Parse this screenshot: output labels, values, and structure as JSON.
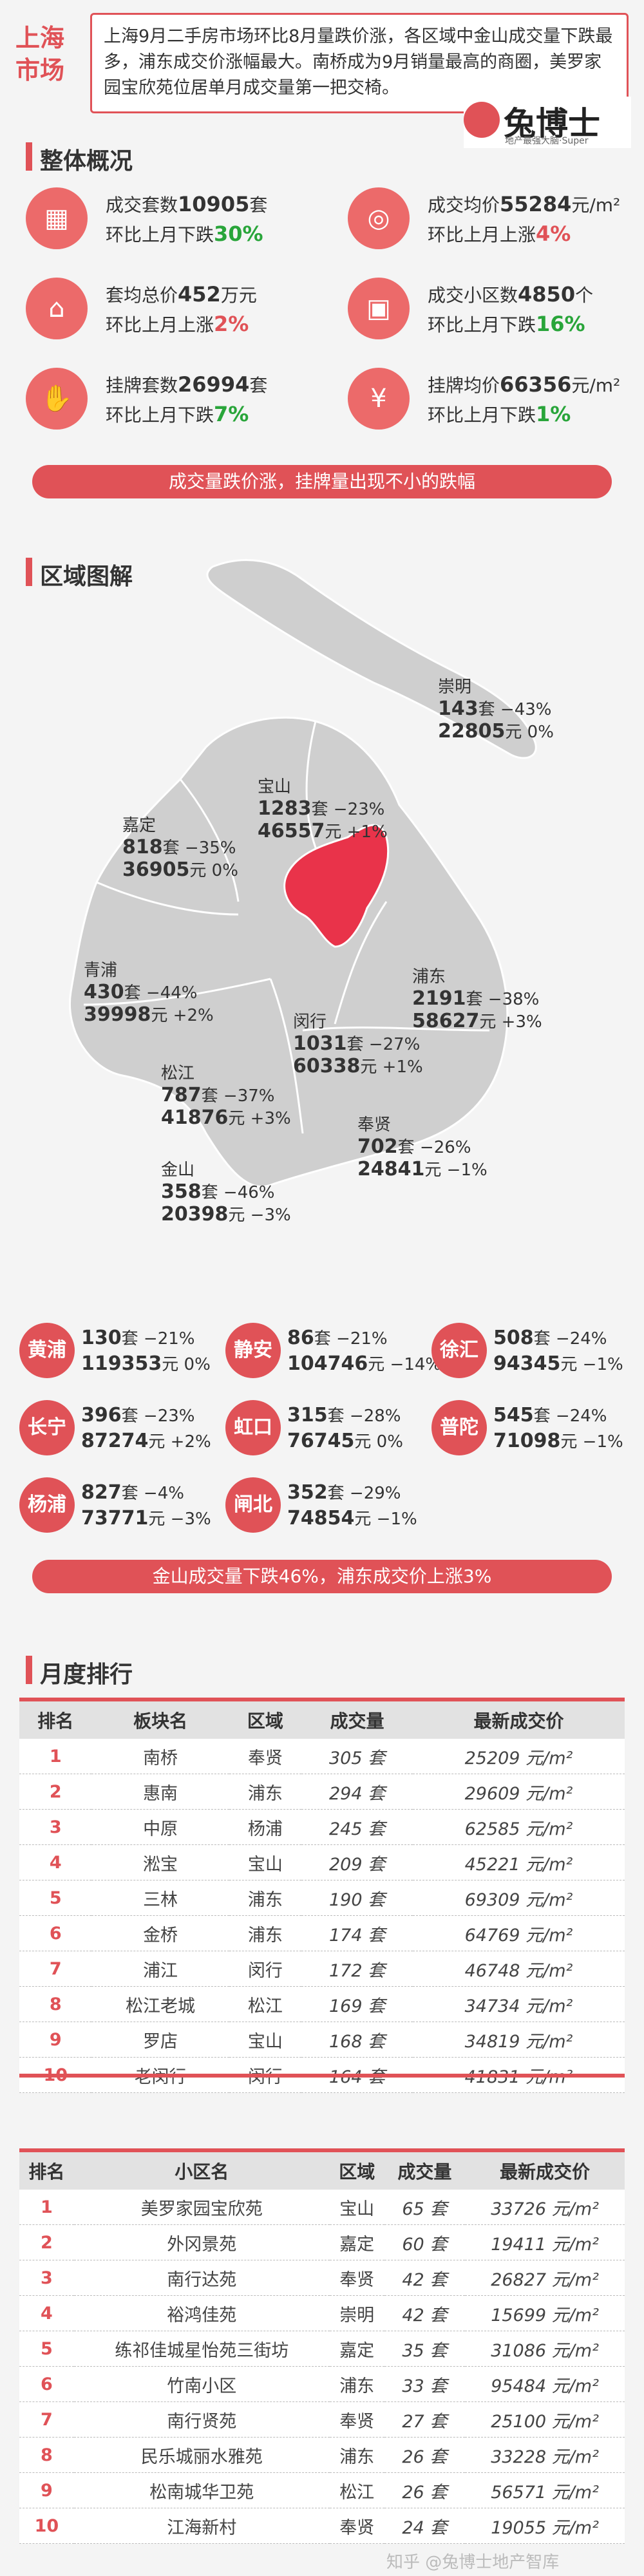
{
  "header": {
    "tag_line1": "上海",
    "tag_line2": "市场",
    "summary": "上海9月二手房市场环比8月量跌价涨，各区域中金山成交量下跌最多，浦东成交价涨幅最大。南桥成为9月销量最高的商圈，美罗家园宝欣苑位居单月成交量第一把交椅。",
    "logo_name": "兔博士",
    "logo_sub": "地产最强大脑·Super"
  },
  "overview": {
    "title": "整体概况",
    "items": [
      {
        "icon": "building-icon",
        "l1_pre": "成交套数",
        "value": "10905",
        "l1_post": "套",
        "l2_pre": "环比上月下跌",
        "change": "30%",
        "dir": "down"
      },
      {
        "icon": "coins-icon",
        "l1_pre": "成交均价",
        "value": "55284",
        "l1_post": "元/m²",
        "l2_pre": "环比上月上涨",
        "change": "4%",
        "dir": "up"
      },
      {
        "icon": "house-price-icon",
        "l1_pre": "套均总价",
        "value": "452",
        "l1_post": "万元",
        "l2_pre": "环比上月上涨",
        "change": "2%",
        "dir": "up"
      },
      {
        "icon": "area-icon",
        "l1_pre": "成交小区数",
        "value": "4850",
        "l1_post": "个",
        "l2_pre": "环比上月下跌",
        "change": "16%",
        "dir": "down"
      },
      {
        "icon": "hand-coin-icon",
        "l1_pre": "挂牌套数",
        "value": "26994",
        "l1_post": "套",
        "l2_pre": "环比上月下跌",
        "change": "7%",
        "dir": "down"
      },
      {
        "icon": "yen-icon",
        "l1_pre": "挂牌均价",
        "value": "66356",
        "l1_post": "元/m²",
        "l2_pre": "环比上月下跌",
        "change": "1%",
        "dir": "down"
      }
    ],
    "banner": "成交量跌价涨，挂牌量出现不小的跌幅"
  },
  "region": {
    "title": "区域图解",
    "map_districts": [
      {
        "key": "chongming",
        "name": "崇明",
        "units": "143",
        "units_chg": "−43%",
        "price": "22805",
        "price_chg": "0%"
      },
      {
        "key": "baoshan",
        "name": "宝山",
        "units": "1283",
        "units_chg": "−23%",
        "price": "46557",
        "price_chg": "+1%"
      },
      {
        "key": "jiading",
        "name": "嘉定",
        "units": "818",
        "units_chg": "−35%",
        "price": "36905",
        "price_chg": "0%"
      },
      {
        "key": "qingpu",
        "name": "青浦",
        "units": "430",
        "units_chg": "−44%",
        "price": "39998",
        "price_chg": "+2%"
      },
      {
        "key": "pudong",
        "name": "浦东",
        "units": "2191",
        "units_chg": "−38%",
        "price": "58627",
        "price_chg": "+3%"
      },
      {
        "key": "minhang",
        "name": "闵行",
        "units": "1031",
        "units_chg": "−27%",
        "price": "60338",
        "price_chg": "+1%"
      },
      {
        "key": "songjiang",
        "name": "松江",
        "units": "787",
        "units_chg": "−37%",
        "price": "41876",
        "price_chg": "+3%"
      },
      {
        "key": "fengxian",
        "name": "奉贤",
        "units": "702",
        "units_chg": "−26%",
        "price": "24841",
        "price_chg": "−1%"
      },
      {
        "key": "jinshan",
        "name": "金山",
        "units": "358",
        "units_chg": "−46%",
        "price": "20398",
        "price_chg": "−3%"
      }
    ],
    "units_suffix": "套",
    "price_suffix": "元",
    "center_districts": [
      {
        "name": "黄浦",
        "units": "130",
        "units_chg": "−21%",
        "price": "119353",
        "price_chg": "0%"
      },
      {
        "name": "静安",
        "units": "86",
        "units_chg": "−21%",
        "price": "104746",
        "price_chg": "−14%"
      },
      {
        "name": "徐汇",
        "units": "508",
        "units_chg": "−24%",
        "price": "94345",
        "price_chg": "−1%"
      },
      {
        "name": "长宁",
        "units": "396",
        "units_chg": "−23%",
        "price": "87274",
        "price_chg": "+2%"
      },
      {
        "name": "虹口",
        "units": "315",
        "units_chg": "−28%",
        "price": "76745",
        "price_chg": "0%"
      },
      {
        "name": "普陀",
        "units": "545",
        "units_chg": "−24%",
        "price": "71098",
        "price_chg": "−1%"
      },
      {
        "name": "杨浦",
        "units": "827",
        "units_chg": "−4%",
        "price": "73771",
        "price_chg": "−3%"
      },
      {
        "name": "闸北",
        "units": "352",
        "units_chg": "−29%",
        "price": "74854",
        "price_chg": "−1%"
      }
    ],
    "banner": "金山成交量下跌46%，浦东成交价上涨3%"
  },
  "ranking": {
    "title": "月度排行",
    "table1": {
      "headers": [
        "排名",
        "板块名",
        "区域",
        "成交量",
        "最新成交价"
      ],
      "unit_vol": "套",
      "unit_price": "元/m²",
      "rows": [
        [
          "1",
          "南桥",
          "奉贤",
          "305",
          "25209"
        ],
        [
          "2",
          "惠南",
          "浦东",
          "294",
          "29609"
        ],
        [
          "3",
          "中原",
          "杨浦",
          "245",
          "62585"
        ],
        [
          "4",
          "淞宝",
          "宝山",
          "209",
          "45221"
        ],
        [
          "5",
          "三林",
          "浦东",
          "190",
          "69309"
        ],
        [
          "6",
          "金桥",
          "浦东",
          "174",
          "64769"
        ],
        [
          "7",
          "浦江",
          "闵行",
          "172",
          "46748"
        ],
        [
          "8",
          "松江老城",
          "松江",
          "169",
          "34734"
        ],
        [
          "9",
          "罗店",
          "宝山",
          "168",
          "34819"
        ],
        [
          "10",
          "老闵行",
          "闵行",
          "164",
          "41831"
        ]
      ]
    },
    "table2": {
      "headers": [
        "排名",
        "小区名",
        "区域",
        "成交量",
        "最新成交价"
      ],
      "unit_vol": "套",
      "unit_price": "元/m²",
      "rows": [
        [
          "1",
          "美罗家园宝欣苑",
          "宝山",
          "65",
          "33726"
        ],
        [
          "2",
          "外冈景苑",
          "嘉定",
          "60",
          "19411"
        ],
        [
          "3",
          "南行达苑",
          "奉贤",
          "42",
          "26827"
        ],
        [
          "4",
          "裕鸿佳苑",
          "崇明",
          "42",
          "15699"
        ],
        [
          "5",
          "练祁佳城星怡苑三街坊",
          "嘉定",
          "35",
          "31086"
        ],
        [
          "6",
          "竹南小区",
          "浦东",
          "33",
          "95484"
        ],
        [
          "7",
          "南行贤苑",
          "奉贤",
          "27",
          "25100"
        ],
        [
          "8",
          "民乐城丽水雅苑",
          "浦东",
          "26",
          "33228"
        ],
        [
          "9",
          "松南城华卫苑",
          "松江",
          "26",
          "56571"
        ],
        [
          "10",
          "江海新村",
          "奉贤",
          "24",
          "19055"
        ]
      ]
    }
  },
  "watermark": "知乎 @兔博士地产智库",
  "colors": {
    "accent": "#e05257",
    "up": "#e05257",
    "down": "#29a53a",
    "map_gray": "#cfcfcf"
  }
}
